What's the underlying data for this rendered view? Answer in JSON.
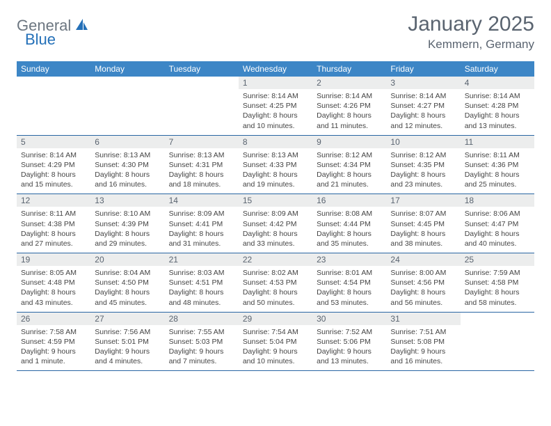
{
  "brand": {
    "part1": "General",
    "part2": "Blue"
  },
  "title": "January 2025",
  "location": "Kemmern, Germany",
  "colors": {
    "header_bg": "#3d86c6",
    "header_text": "#ffffff",
    "daynum_bg": "#eceded",
    "border": "#2865a3",
    "text": "#5a6470"
  },
  "weekdays": [
    "Sunday",
    "Monday",
    "Tuesday",
    "Wednesday",
    "Thursday",
    "Friday",
    "Saturday"
  ],
  "weeks": [
    [
      null,
      null,
      null,
      {
        "n": "1",
        "sr": "Sunrise: 8:14 AM",
        "ss": "Sunset: 4:25 PM",
        "dl": "Daylight: 8 hours and 10 minutes."
      },
      {
        "n": "2",
        "sr": "Sunrise: 8:14 AM",
        "ss": "Sunset: 4:26 PM",
        "dl": "Daylight: 8 hours and 11 minutes."
      },
      {
        "n": "3",
        "sr": "Sunrise: 8:14 AM",
        "ss": "Sunset: 4:27 PM",
        "dl": "Daylight: 8 hours and 12 minutes."
      },
      {
        "n": "4",
        "sr": "Sunrise: 8:14 AM",
        "ss": "Sunset: 4:28 PM",
        "dl": "Daylight: 8 hours and 13 minutes."
      }
    ],
    [
      {
        "n": "5",
        "sr": "Sunrise: 8:14 AM",
        "ss": "Sunset: 4:29 PM",
        "dl": "Daylight: 8 hours and 15 minutes."
      },
      {
        "n": "6",
        "sr": "Sunrise: 8:13 AM",
        "ss": "Sunset: 4:30 PM",
        "dl": "Daylight: 8 hours and 16 minutes."
      },
      {
        "n": "7",
        "sr": "Sunrise: 8:13 AM",
        "ss": "Sunset: 4:31 PM",
        "dl": "Daylight: 8 hours and 18 minutes."
      },
      {
        "n": "8",
        "sr": "Sunrise: 8:13 AM",
        "ss": "Sunset: 4:33 PM",
        "dl": "Daylight: 8 hours and 19 minutes."
      },
      {
        "n": "9",
        "sr": "Sunrise: 8:12 AM",
        "ss": "Sunset: 4:34 PM",
        "dl": "Daylight: 8 hours and 21 minutes."
      },
      {
        "n": "10",
        "sr": "Sunrise: 8:12 AM",
        "ss": "Sunset: 4:35 PM",
        "dl": "Daylight: 8 hours and 23 minutes."
      },
      {
        "n": "11",
        "sr": "Sunrise: 8:11 AM",
        "ss": "Sunset: 4:36 PM",
        "dl": "Daylight: 8 hours and 25 minutes."
      }
    ],
    [
      {
        "n": "12",
        "sr": "Sunrise: 8:11 AM",
        "ss": "Sunset: 4:38 PM",
        "dl": "Daylight: 8 hours and 27 minutes."
      },
      {
        "n": "13",
        "sr": "Sunrise: 8:10 AM",
        "ss": "Sunset: 4:39 PM",
        "dl": "Daylight: 8 hours and 29 minutes."
      },
      {
        "n": "14",
        "sr": "Sunrise: 8:09 AM",
        "ss": "Sunset: 4:41 PM",
        "dl": "Daylight: 8 hours and 31 minutes."
      },
      {
        "n": "15",
        "sr": "Sunrise: 8:09 AM",
        "ss": "Sunset: 4:42 PM",
        "dl": "Daylight: 8 hours and 33 minutes."
      },
      {
        "n": "16",
        "sr": "Sunrise: 8:08 AM",
        "ss": "Sunset: 4:44 PM",
        "dl": "Daylight: 8 hours and 35 minutes."
      },
      {
        "n": "17",
        "sr": "Sunrise: 8:07 AM",
        "ss": "Sunset: 4:45 PM",
        "dl": "Daylight: 8 hours and 38 minutes."
      },
      {
        "n": "18",
        "sr": "Sunrise: 8:06 AM",
        "ss": "Sunset: 4:47 PM",
        "dl": "Daylight: 8 hours and 40 minutes."
      }
    ],
    [
      {
        "n": "19",
        "sr": "Sunrise: 8:05 AM",
        "ss": "Sunset: 4:48 PM",
        "dl": "Daylight: 8 hours and 43 minutes."
      },
      {
        "n": "20",
        "sr": "Sunrise: 8:04 AM",
        "ss": "Sunset: 4:50 PM",
        "dl": "Daylight: 8 hours and 45 minutes."
      },
      {
        "n": "21",
        "sr": "Sunrise: 8:03 AM",
        "ss": "Sunset: 4:51 PM",
        "dl": "Daylight: 8 hours and 48 minutes."
      },
      {
        "n": "22",
        "sr": "Sunrise: 8:02 AM",
        "ss": "Sunset: 4:53 PM",
        "dl": "Daylight: 8 hours and 50 minutes."
      },
      {
        "n": "23",
        "sr": "Sunrise: 8:01 AM",
        "ss": "Sunset: 4:54 PM",
        "dl": "Daylight: 8 hours and 53 minutes."
      },
      {
        "n": "24",
        "sr": "Sunrise: 8:00 AM",
        "ss": "Sunset: 4:56 PM",
        "dl": "Daylight: 8 hours and 56 minutes."
      },
      {
        "n": "25",
        "sr": "Sunrise: 7:59 AM",
        "ss": "Sunset: 4:58 PM",
        "dl": "Daylight: 8 hours and 58 minutes."
      }
    ],
    [
      {
        "n": "26",
        "sr": "Sunrise: 7:58 AM",
        "ss": "Sunset: 4:59 PM",
        "dl": "Daylight: 9 hours and 1 minute."
      },
      {
        "n": "27",
        "sr": "Sunrise: 7:56 AM",
        "ss": "Sunset: 5:01 PM",
        "dl": "Daylight: 9 hours and 4 minutes."
      },
      {
        "n": "28",
        "sr": "Sunrise: 7:55 AM",
        "ss": "Sunset: 5:03 PM",
        "dl": "Daylight: 9 hours and 7 minutes."
      },
      {
        "n": "29",
        "sr": "Sunrise: 7:54 AM",
        "ss": "Sunset: 5:04 PM",
        "dl": "Daylight: 9 hours and 10 minutes."
      },
      {
        "n": "30",
        "sr": "Sunrise: 7:52 AM",
        "ss": "Sunset: 5:06 PM",
        "dl": "Daylight: 9 hours and 13 minutes."
      },
      {
        "n": "31",
        "sr": "Sunrise: 7:51 AM",
        "ss": "Sunset: 5:08 PM",
        "dl": "Daylight: 9 hours and 16 minutes."
      },
      null
    ]
  ]
}
